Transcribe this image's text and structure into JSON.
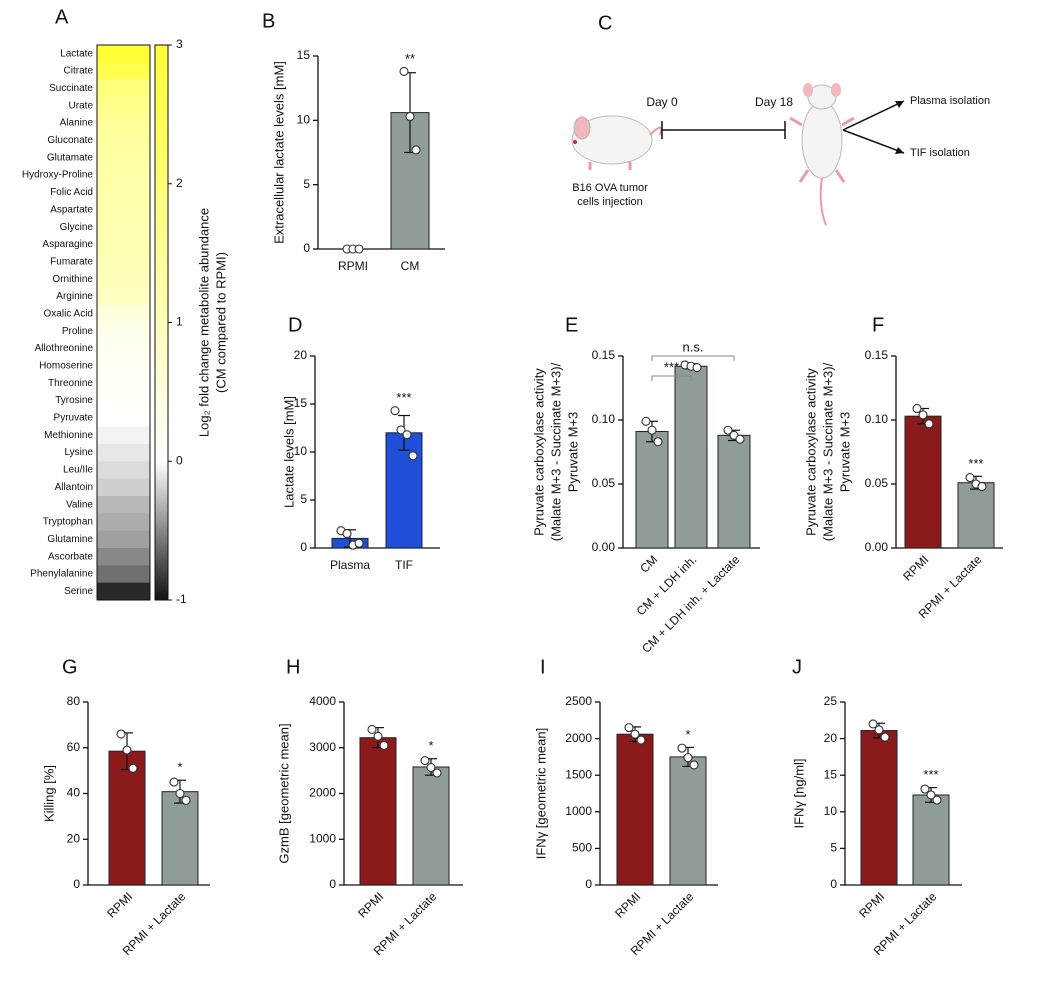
{
  "chart_data": [
    {
      "type": "heatmap",
      "panel": "A",
      "categories": [
        "Lactate",
        "Citrate",
        "Succinate",
        "Urate",
        "Alanine",
        "Gluconate",
        "Glutamate",
        "Hydroxy-Proline",
        "Folic Acid",
        "Aspartate",
        "Glycine",
        "Asparagine",
        "Fumarate",
        "Ornithine",
        "Arginine",
        "Oxalic Acid",
        "Proline",
        "Allothreonine",
        "Homoserine",
        "Threonine",
        "Tyrosine",
        "Pyruvate",
        "Methionine",
        "Lysine",
        "Leu/Ile",
        "Allantoin",
        "Valine",
        "Tryptophan",
        "Glutamine",
        "Ascorbate",
        "Phenylalanine",
        "Serine"
      ],
      "values": [
        2.95,
        2.6,
        1.9,
        1.7,
        1.5,
        1.4,
        1.35,
        1.3,
        1.25,
        1.2,
        1.15,
        1.1,
        1.05,
        1.0,
        0.9,
        0.5,
        0.3,
        0.2,
        0.15,
        0.1,
        0.05,
        0.0,
        -0.05,
        -0.1,
        -0.15,
        -0.2,
        -0.3,
        -0.35,
        -0.4,
        -0.5,
        -0.6,
        -0.9
      ],
      "clim": [
        -1,
        3
      ],
      "cticks": [
        -1,
        0,
        1,
        2,
        3
      ],
      "colormap": [
        "#111111",
        "#ffffff",
        "#ffff33"
      ],
      "colorbar_label": [
        "Log₂ fold change metabolite abundance",
        "(CM compared to RPMI)"
      ]
    },
    {
      "type": "bar",
      "panel": "B",
      "ylabel": "Extracellular lactate levels [mM]",
      "categories": [
        "RPMI",
        "CM"
      ],
      "values": [
        0,
        10.6
      ],
      "errors": [
        0,
        3.1
      ],
      "points": [
        [
          0,
          0,
          0
        ],
        [
          13.8,
          10.3,
          7.7
        ]
      ],
      "colors": [
        "#8f9c98",
        "#8f9c98"
      ],
      "ylim": [
        0,
        15
      ],
      "yticks": [
        0,
        5,
        10,
        15
      ],
      "significance": [
        null,
        "**"
      ]
    },
    {
      "type": "bar",
      "panel": "D",
      "ylabel": "Lactate levels [mM]",
      "categories": [
        "Plasma",
        "TIF"
      ],
      "values": [
        1.0,
        12.0
      ],
      "errors": [
        0.9,
        1.8
      ],
      "points": [
        [
          1.8,
          1.5,
          0.3,
          0.5
        ],
        [
          14.3,
          12.3,
          11.8,
          9.6
        ]
      ],
      "colors": [
        "#1f4fd8",
        "#1f4fd8"
      ],
      "ylim": [
        0,
        20
      ],
      "yticks": [
        0,
        5,
        10,
        15,
        20
      ],
      "significance": [
        null,
        "***"
      ]
    },
    {
      "type": "bar",
      "panel": "E",
      "ylabel": [
        "Pyruvate carboxylase activity",
        "(Malate M+3 - Succinate M+3)/",
        "Pyruvate M+3"
      ],
      "categories": [
        "CM",
        "CM + LDH inh.",
        "CM + LDH inh. + Lactate"
      ],
      "values": [
        0.091,
        0.142,
        0.088
      ],
      "errors": [
        0.008,
        0.002,
        0.004
      ],
      "points": [
        [
          0.099,
          0.092,
          0.083
        ],
        [
          0.143,
          0.142,
          0.141
        ],
        [
          0.092,
          0.088,
          0.085
        ]
      ],
      "colors": [
        "#8f9c98",
        "#8f9c98",
        "#8f9c98"
      ],
      "ylim": [
        0,
        0.15
      ],
      "yticks": [
        {
          "value": 0,
          "label": "0.00"
        },
        {
          "value": 0.05,
          "label": "0.05"
        },
        {
          "value": 0.1,
          "label": "0.10"
        },
        {
          "value": 0.15,
          "label": "0.15"
        }
      ],
      "brackets": [
        {
          "text": "***",
          "from": "CM",
          "to": "CM + LDH inh."
        },
        {
          "text": "n.s.",
          "from": "CM",
          "to": "CM + LDH inh. + Lactate"
        }
      ]
    },
    {
      "type": "bar",
      "panel": "F",
      "ylabel": [
        "Pyruvate carboxylase activity",
        "(Malate M+3 - Succinate M+3)/",
        "Pyruvate M+3"
      ],
      "categories": [
        "RPMI",
        "RPMI + Lactate"
      ],
      "values": [
        0.103,
        0.051
      ],
      "errors": [
        0.006,
        0.005
      ],
      "points": [
        [
          0.109,
          0.104,
          0.097
        ],
        [
          0.055,
          0.05,
          0.048
        ]
      ],
      "colors": [
        "#8b1b1b",
        "#8f9c98"
      ],
      "ylim": [
        0,
        0.15
      ],
      "yticks": [
        {
          "value": 0,
          "label": "0.00"
        },
        {
          "value": 0.05,
          "label": "0.05"
        },
        {
          "value": 0.1,
          "label": "0.10"
        },
        {
          "value": 0.15,
          "label": "0.15"
        }
      ],
      "significance": [
        null,
        "***"
      ]
    },
    {
      "type": "bar",
      "panel": "G",
      "ylabel": "Killing [%]",
      "categories": [
        "RPMI",
        "RPMI + Lactate"
      ],
      "values": [
        58.5,
        40.8
      ],
      "errors": [
        8,
        5
      ],
      "points": [
        [
          66,
          59,
          51
        ],
        [
          45,
          40,
          37
        ]
      ],
      "colors": [
        "#8b1b1b",
        "#8f9c98"
      ],
      "ylim": [
        0,
        80
      ],
      "yticks": [
        0,
        20,
        40,
        60,
        80
      ],
      "significance": [
        null,
        "*"
      ]
    },
    {
      "type": "bar",
      "panel": "H",
      "ylabel": "GzmB [geometric mean]",
      "categories": [
        "RPMI",
        "RPMI + Lactate"
      ],
      "values": [
        3220,
        2580
      ],
      "errors": [
        220,
        180
      ],
      "points": [
        [
          3400,
          3250,
          3050
        ],
        [
          2720,
          2570,
          2450
        ]
      ],
      "colors": [
        "#8b1b1b",
        "#8f9c98"
      ],
      "ylim": [
        0,
        4000
      ],
      "yticks": [
        0,
        1000,
        2000,
        3000,
        4000
      ],
      "significance": [
        null,
        "*"
      ]
    },
    {
      "type": "bar",
      "panel": "I",
      "ylabel": "IFNγ [geometric mean]",
      "categories": [
        "RPMI",
        "RPMI + Lactate"
      ],
      "values": [
        2060,
        1750
      ],
      "errors": [
        100,
        130
      ],
      "points": [
        [
          2150,
          2060,
          1980
        ],
        [
          1870,
          1740,
          1640
        ]
      ],
      "colors": [
        "#8b1b1b",
        "#8f9c98"
      ],
      "ylim": [
        0,
        2500
      ],
      "yticks": [
        0,
        500,
        1000,
        1500,
        2000,
        2500
      ],
      "significance": [
        null,
        "*"
      ]
    },
    {
      "type": "bar",
      "panel": "J",
      "ylabel": "IFNγ [ng/ml]",
      "categories": [
        "RPMI",
        "RPMI + Lactate"
      ],
      "values": [
        21.1,
        12.3
      ],
      "errors": [
        1.0,
        1.0
      ],
      "points": [
        [
          22,
          21.2,
          20.2
        ],
        [
          13.1,
          12.3,
          11.6
        ]
      ],
      "colors": [
        "#8b1b1b",
        "#8f9c98"
      ],
      "ylim": [
        0,
        25
      ],
      "yticks": [
        0,
        5,
        10,
        15,
        20,
        25
      ],
      "significance": [
        null,
        "***"
      ]
    }
  ],
  "diagram": {
    "panel": "C",
    "day_start": "Day 0",
    "day_end": "Day 18",
    "injection": [
      "B16 OVA tumor",
      "cells injection"
    ],
    "outputs": [
      "Plasma isolation",
      "TIF isolation"
    ]
  }
}
